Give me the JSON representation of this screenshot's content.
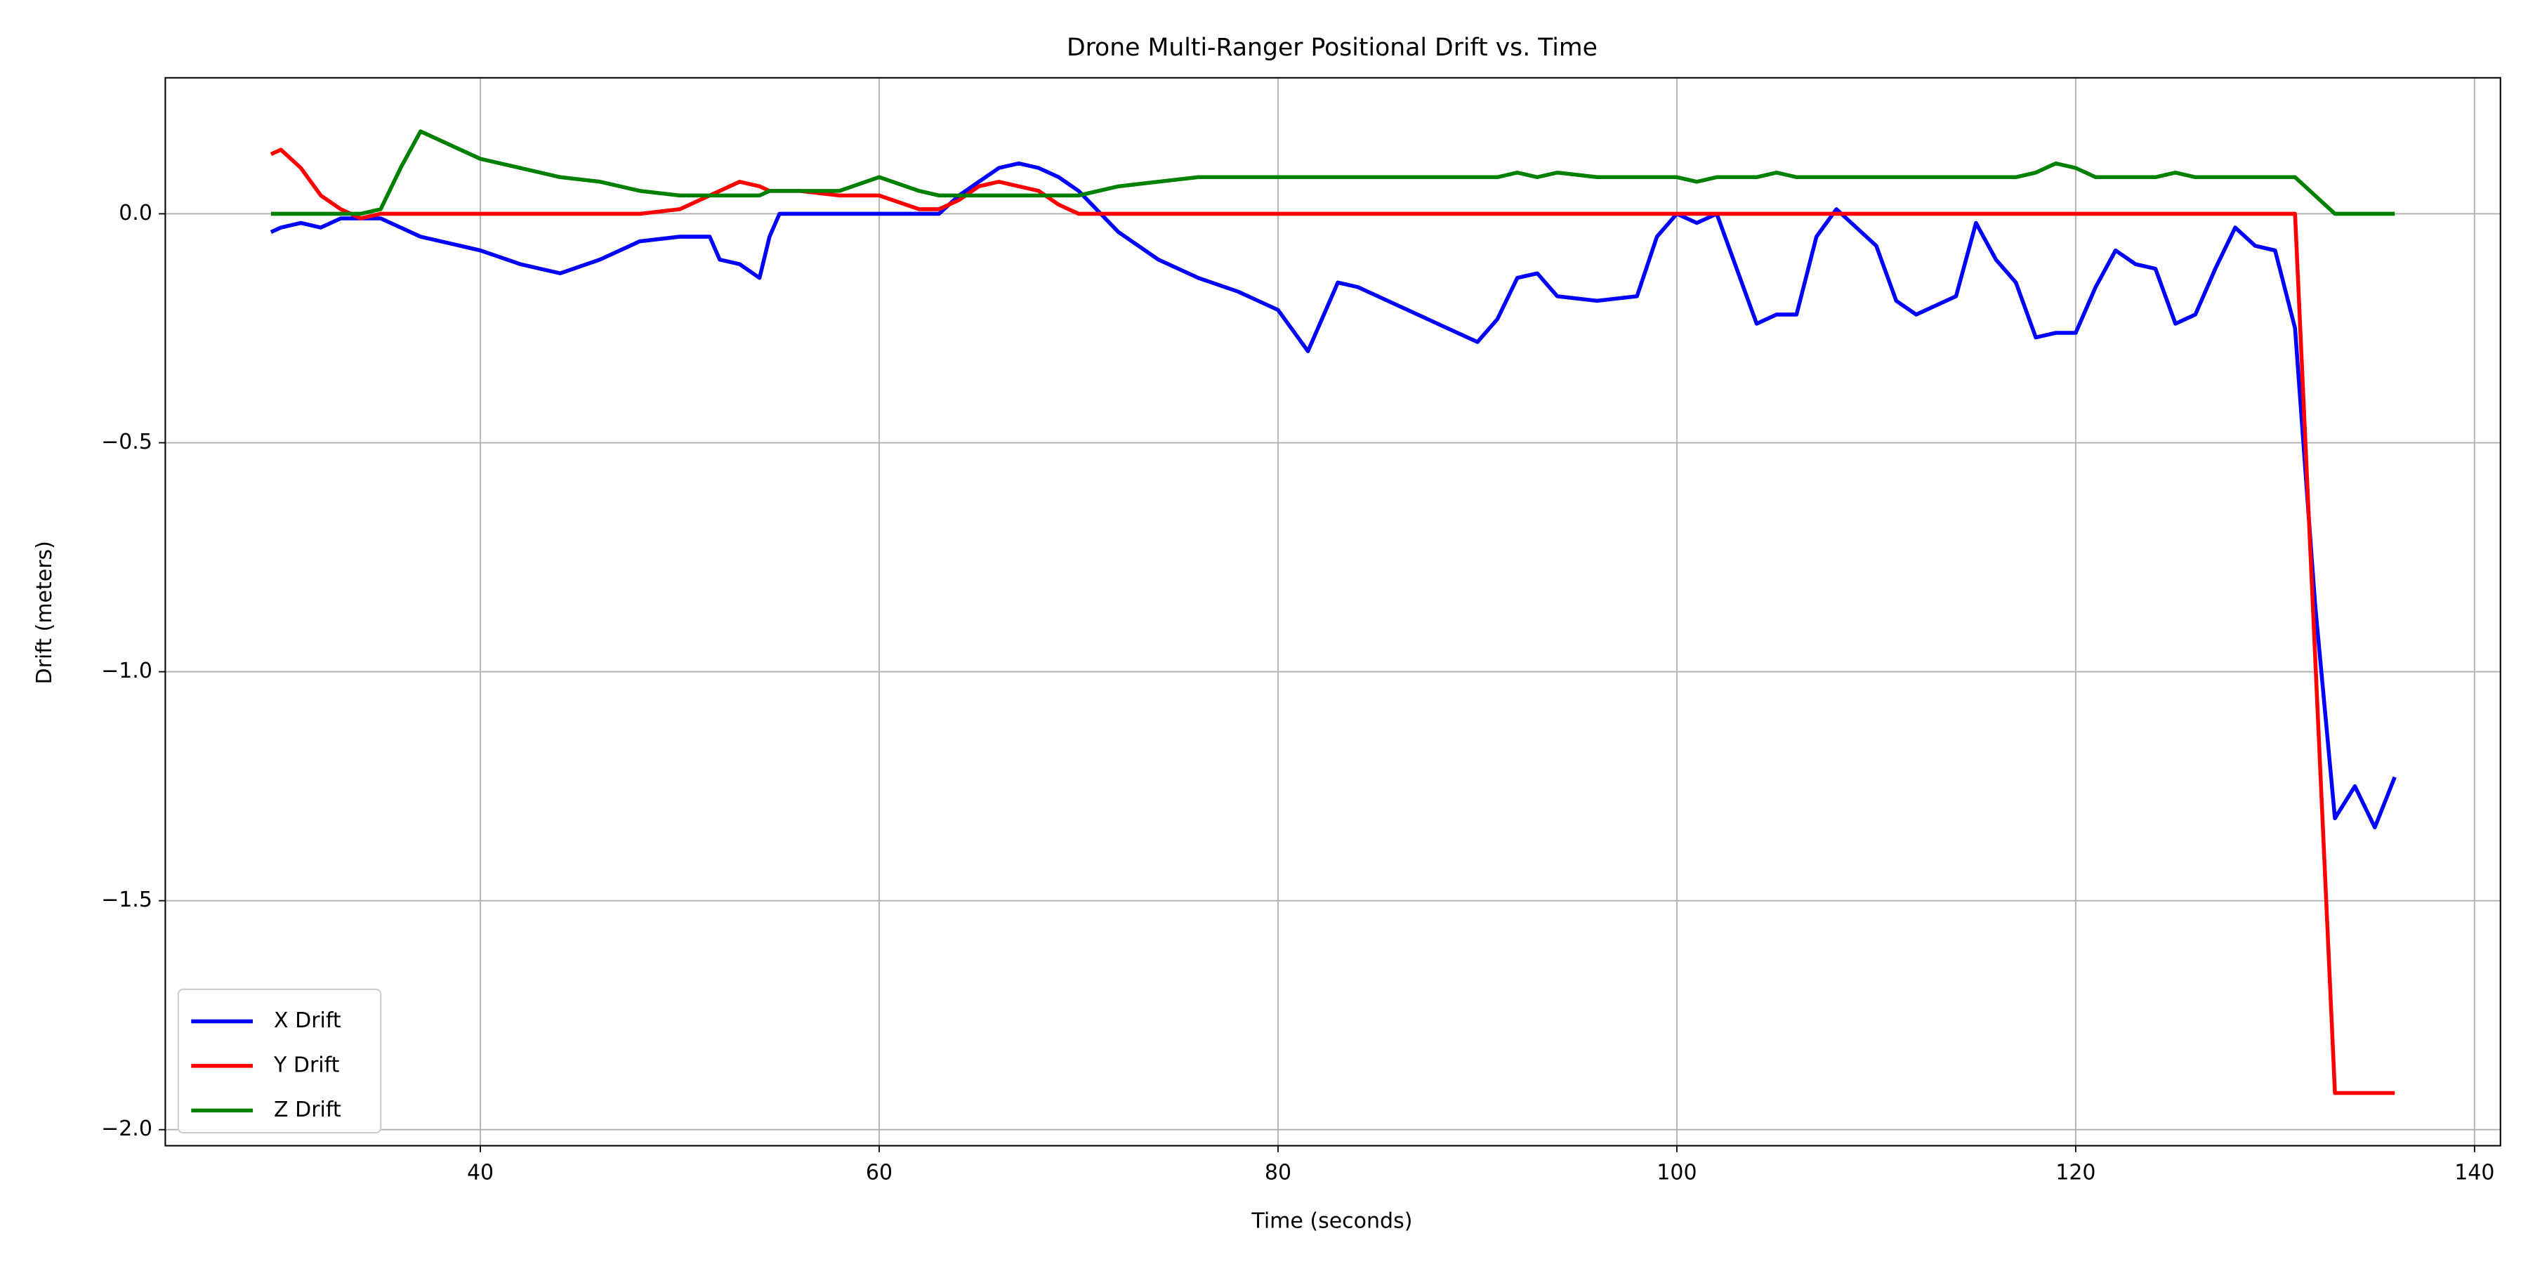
{
  "chart_data": {
    "type": "line",
    "title": "Drone Multi-Ranger Positional Drift vs. Time",
    "x_label": "Time (seconds)",
    "y_label": "Drift (meters)",
    "x": [
      29.5,
      30,
      31,
      32,
      33,
      34,
      35,
      36,
      37,
      38,
      40,
      42,
      44,
      46,
      48,
      50,
      51.5,
      52,
      53,
      54,
      54.5,
      55,
      56,
      58,
      60,
      62,
      63,
      64,
      65,
      66,
      67,
      68,
      69,
      70,
      72,
      74,
      76,
      78,
      80,
      81.5,
      82,
      83,
      84,
      86,
      88,
      90,
      91,
      92,
      93,
      94,
      96,
      98,
      99,
      100,
      101,
      102,
      103,
      104,
      105,
      106,
      107,
      108,
      109,
      110,
      111,
      112,
      114,
      115,
      116,
      117,
      118,
      119,
      120,
      121,
      122,
      123,
      124,
      125,
      126,
      127,
      128,
      129,
      130,
      131,
      132,
      133,
      134,
      135,
      136
    ],
    "series": [
      {
        "name": "X Drift",
        "color": "#0000ff",
        "values": [
          -0.04,
          -0.03,
          -0.02,
          -0.03,
          -0.01,
          -0.01,
          -0.01,
          -0.03,
          -0.05,
          -0.06,
          -0.08,
          -0.11,
          -0.13,
          -0.1,
          -0.06,
          -0.05,
          -0.05,
          -0.1,
          -0.11,
          -0.14,
          -0.05,
          0,
          0,
          0,
          0,
          0,
          0,
          0.04,
          0.07,
          0.1,
          0.11,
          0.1,
          0.08,
          0.05,
          -0.04,
          -0.1,
          -0.14,
          -0.17,
          -0.21,
          -0.3,
          -0.25,
          -0.15,
          -0.16,
          -0.2,
          -0.24,
          -0.28,
          -0.23,
          -0.14,
          -0.13,
          -0.18,
          -0.19,
          -0.18,
          -0.05,
          0,
          -0.02,
          0,
          -0.12,
          -0.24,
          -0.22,
          -0.22,
          -0.05,
          0.01,
          -0.03,
          -0.07,
          -0.19,
          -0.22,
          -0.18,
          -0.02,
          -0.1,
          -0.15,
          -0.27,
          -0.26,
          -0.26,
          -0.16,
          -0.08,
          -0.11,
          -0.12,
          -0.24,
          -0.22,
          -0.12,
          -0.03,
          -0.07,
          -0.08,
          -0.25,
          -0.85,
          -1.32,
          -1.25,
          -1.34,
          -1.23
        ]
      },
      {
        "name": "Y Drift",
        "color": "#ff0000",
        "values": [
          0.13,
          0.14,
          0.1,
          0.04,
          0.01,
          -0.01,
          0,
          0,
          0,
          0,
          0,
          0,
          0,
          0,
          0,
          0.01,
          0.04,
          0.05,
          0.07,
          0.06,
          0.05,
          0.05,
          0.05,
          0.04,
          0.04,
          0.01,
          0.01,
          0.03,
          0.06,
          0.07,
          0.06,
          0.05,
          0.02,
          0,
          0,
          0,
          0,
          0,
          0,
          0,
          0,
          0,
          0,
          0,
          0,
          0,
          0,
          0,
          0,
          0,
          0,
          0,
          0,
          0,
          0,
          0,
          0,
          0,
          0,
          0,
          0,
          0,
          0,
          0,
          0,
          0,
          0,
          0,
          0,
          0,
          0,
          0,
          0,
          0,
          0,
          0,
          0,
          0,
          0,
          0,
          0,
          0,
          0,
          0,
          -0.96,
          -1.92,
          -1.92,
          -1.92,
          -1.92
        ]
      },
      {
        "name": "Z Drift",
        "color": "#008000",
        "values": [
          0,
          0,
          0,
          0,
          0,
          0,
          0.01,
          0.1,
          0.18,
          0.16,
          0.12,
          0.1,
          0.08,
          0.07,
          0.05,
          0.04,
          0.04,
          0.04,
          0.04,
          0.04,
          0.05,
          0.05,
          0.05,
          0.05,
          0.08,
          0.05,
          0.04,
          0.04,
          0.04,
          0.04,
          0.04,
          0.04,
          0.04,
          0.04,
          0.06,
          0.07,
          0.08,
          0.08,
          0.08,
          0.08,
          0.08,
          0.08,
          0.08,
          0.08,
          0.08,
          0.08,
          0.08,
          0.09,
          0.08,
          0.09,
          0.08,
          0.08,
          0.08,
          0.08,
          0.07,
          0.08,
          0.08,
          0.08,
          0.09,
          0.08,
          0.08,
          0.08,
          0.08,
          0.08,
          0.08,
          0.08,
          0.08,
          0.08,
          0.08,
          0.08,
          0.09,
          0.11,
          0.1,
          0.08,
          0.08,
          0.08,
          0.08,
          0.09,
          0.08,
          0.08,
          0.08,
          0.08,
          0.08,
          0.08,
          0.04,
          0,
          0,
          0,
          0
        ]
      }
    ],
    "xlim": [
      24.2,
      141.3
    ],
    "ylim": [
      -2.035,
      0.297
    ],
    "xticks": [
      40,
      60,
      80,
      100,
      120,
      140
    ],
    "yticks": [
      {
        "value": -2.0,
        "label": "−2.0"
      },
      {
        "value": -1.5,
        "label": "−1.5"
      },
      {
        "value": -1.0,
        "label": "−1.0"
      },
      {
        "value": -0.5,
        "label": "−0.5"
      },
      {
        "value": 0.0,
        "label": "0.0"
      }
    ],
    "grid": true,
    "legend_position": "lower left"
  }
}
